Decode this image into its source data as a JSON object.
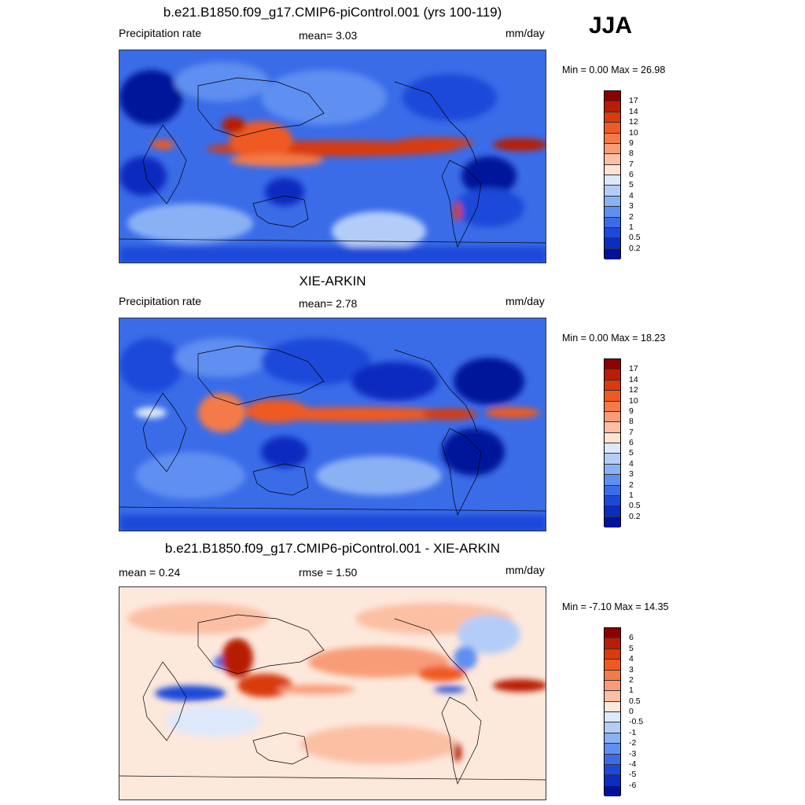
{
  "season": "JJA",
  "panels": [
    {
      "title": "b.e21.B1850.f09_g17.CMIP6-piControl.001 (yrs 100-119)",
      "left_label": "Precipitation rate",
      "center_label": "mean=   3.03",
      "right_label": "mm/day",
      "minmax": "Min =   0.00 Max =  26.98",
      "colorbar": {
        "colors": [
          "#8b0000",
          "#b81d06",
          "#d93a0e",
          "#ef5a22",
          "#f47a49",
          "#f89c78",
          "#fbbfa4",
          "#fde4d3",
          "#dce9fb",
          "#b4cdf8",
          "#8bb1f5",
          "#5f8ff0",
          "#3a6ce8",
          "#1d49d9",
          "#0a2cc0",
          "#00129a"
        ],
        "ticks": [
          "17",
          "14",
          "12",
          "10",
          "9",
          "8",
          "7",
          "6",
          "5",
          "4",
          "3",
          "2",
          "1",
          "0.5",
          "0.2"
        ]
      }
    },
    {
      "title": "XIE-ARKIN",
      "left_label": "Precipitation rate",
      "center_label": "mean=   2.78",
      "right_label": "mm/day",
      "minmax": "Min =   0.00 Max =  18.23",
      "colorbar": {
        "colors": [
          "#8b0000",
          "#b81d06",
          "#d93a0e",
          "#ef5a22",
          "#f47a49",
          "#f89c78",
          "#fbbfa4",
          "#fde4d3",
          "#dce9fb",
          "#b4cdf8",
          "#8bb1f5",
          "#5f8ff0",
          "#3a6ce8",
          "#1d49d9",
          "#0a2cc0",
          "#00129a"
        ],
        "ticks": [
          "17",
          "14",
          "12",
          "10",
          "9",
          "8",
          "7",
          "6",
          "5",
          "4",
          "3",
          "2",
          "1",
          "0.5",
          "0.2"
        ]
      }
    },
    {
      "title": "b.e21.B1850.f09_g17.CMIP6-piControl.001 - XIE-ARKIN",
      "left_label": "mean =   0.24",
      "center_label": "rmse =   1.50",
      "right_label": "mm/day",
      "minmax": "Min =  -7.10 Max =  14.35",
      "colorbar": {
        "colors": [
          "#8b0000",
          "#b81d06",
          "#d93a0e",
          "#ef5a22",
          "#f47a49",
          "#f89c78",
          "#fbbfa4",
          "#fde8dc",
          "#dde9fa",
          "#b4cdf8",
          "#8bb1f5",
          "#5f8ff0",
          "#3a6ce8",
          "#1d49d9",
          "#0a2cc0",
          "#00129a"
        ],
        "ticks": [
          "6",
          "5",
          "4",
          "3",
          "2",
          "1",
          "0.5",
          "0",
          "-0.5",
          "-1",
          "-2",
          "-3",
          "-4",
          "-5",
          "-6"
        ]
      }
    }
  ]
}
